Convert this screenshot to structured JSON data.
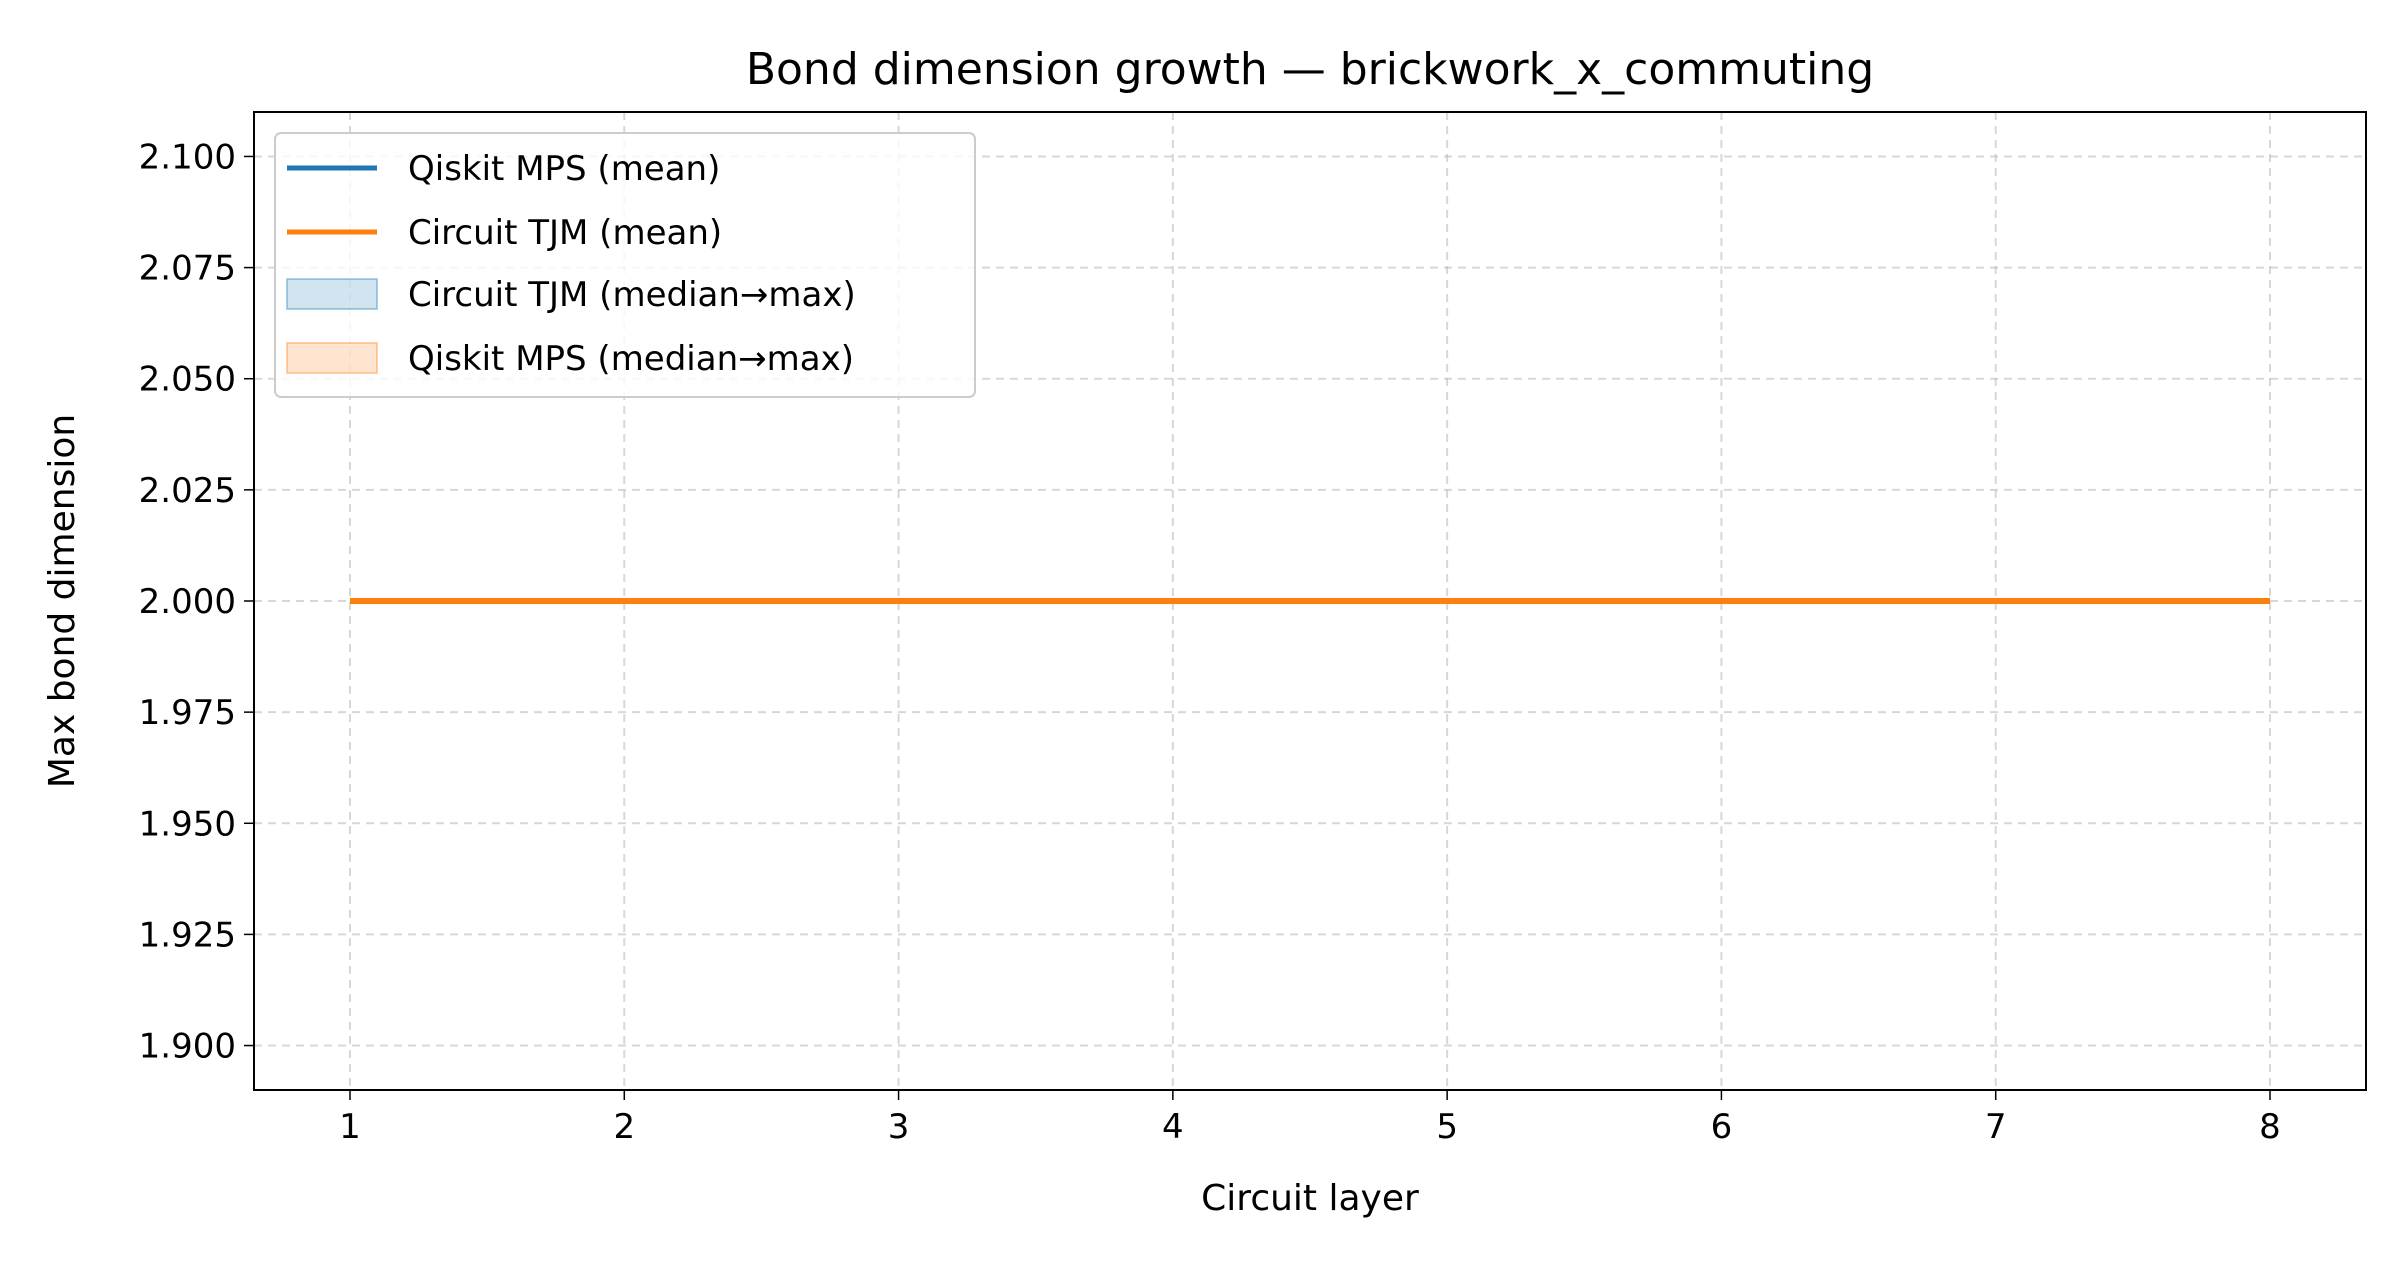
{
  "chart_data": {
    "type": "line",
    "title": "Bond dimension growth — brickwork_x_commuting",
    "xlabel": "Circuit layer",
    "ylabel": "Max bond dimension",
    "xlim": [
      0.65,
      8.35
    ],
    "ylim": [
      1.89,
      2.11
    ],
    "x_ticks": [
      1,
      2,
      3,
      4,
      5,
      6,
      7,
      8
    ],
    "x_tick_labels": [
      "1",
      "2",
      "3",
      "4",
      "5",
      "6",
      "7",
      "8"
    ],
    "y_ticks": [
      1.9,
      1.925,
      1.95,
      1.975,
      2.0,
      2.025,
      2.05,
      2.075,
      2.1
    ],
    "y_tick_labels": [
      "1.900",
      "1.925",
      "1.950",
      "1.975",
      "2.000",
      "2.025",
      "2.050",
      "2.075",
      "2.100"
    ],
    "grid": true,
    "legend_position": "top-left",
    "x": [
      1,
      2,
      3,
      4,
      5,
      6,
      7,
      8
    ],
    "series": [
      {
        "name": "Qiskit MPS (mean)",
        "kind": "line",
        "color": "#1f77b4",
        "values": [
          2,
          2,
          2,
          2,
          2,
          2,
          2,
          2
        ]
      },
      {
        "name": "Circuit TJM (mean)",
        "kind": "line",
        "color": "#ff7f0e",
        "values": [
          2,
          2,
          2,
          2,
          2,
          2,
          2,
          2
        ]
      },
      {
        "name": "Circuit TJM (median→max)",
        "kind": "band",
        "color": "#1f77b4",
        "lower": [
          2,
          2,
          2,
          2,
          2,
          2,
          2,
          2
        ],
        "upper": [
          2,
          2,
          2,
          2,
          2,
          2,
          2,
          2
        ]
      },
      {
        "name": "Qiskit MPS (median→max)",
        "kind": "band",
        "color": "#ff7f0e",
        "lower": [
          2,
          2,
          2,
          2,
          2,
          2,
          2,
          2
        ],
        "upper": [
          2,
          2,
          2,
          2,
          2,
          2,
          2,
          2
        ]
      }
    ]
  }
}
